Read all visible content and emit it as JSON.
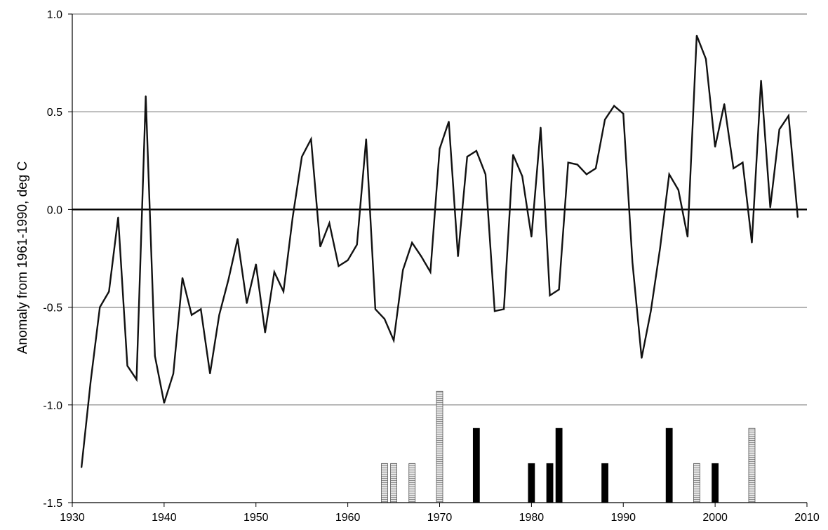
{
  "chart_data": {
    "type": "line",
    "title": "",
    "xlabel": "",
    "ylabel": "Anomaly from 1961-1990, deg C",
    "xlim": [
      1930,
      2010
    ],
    "ylim": [
      -1.5,
      1.0
    ],
    "x_ticks": [
      "1930",
      "1940",
      "1950",
      "1960",
      "1970",
      "1980",
      "1990",
      "2000",
      "2010"
    ],
    "y_ticks": [
      "1.0",
      "0.5",
      "0.0",
      "-0.5",
      "-1.0",
      "-1.5"
    ],
    "grid": "horizontal",
    "series": [
      {
        "x": [
          1931,
          1932,
          1933,
          1934,
          1935,
          1936,
          1937,
          1938,
          1939,
          1940,
          1941,
          1942,
          1943,
          1944,
          1945,
          1946,
          1947,
          1948,
          1949,
          1950,
          1951,
          1952,
          1953,
          1954,
          1955,
          1956,
          1957,
          1958,
          1959,
          1960,
          1961,
          1962,
          1963,
          1964,
          1965,
          1966,
          1967,
          1968,
          1969,
          1970,
          1971,
          1972,
          1973,
          1974,
          1975,
          1976,
          1977,
          1978,
          1979,
          1980,
          1981,
          1982,
          1983,
          1984,
          1985,
          1986,
          1987,
          1988,
          1989,
          1990,
          1991,
          1992,
          1993,
          1994,
          1995,
          1996,
          1997,
          1998,
          1999,
          2000,
          2001,
          2002,
          2003,
          2004,
          2005,
          2006,
          2007,
          2008,
          2009
        ],
        "values": [
          -1.32,
          -0.88,
          -0.5,
          -0.42,
          -0.04,
          -0.8,
          -0.87,
          0.58,
          -0.75,
          -0.99,
          -0.84,
          -0.35,
          -0.54,
          -0.51,
          -0.84,
          -0.54,
          -0.36,
          -0.15,
          -0.48,
          -0.28,
          -0.63,
          -0.32,
          -0.42,
          -0.04,
          0.27,
          0.36,
          -0.19,
          -0.07,
          -0.29,
          -0.26,
          -0.18,
          0.36,
          -0.51,
          -0.56,
          -0.67,
          -0.31,
          -0.17,
          -0.24,
          -0.32,
          0.31,
          0.45,
          -0.24,
          0.27,
          0.3,
          0.18,
          -0.52,
          -0.51,
          0.28,
          0.17,
          -0.14,
          0.42,
          -0.44,
          -0.41,
          0.24,
          0.23,
          0.18,
          0.21,
          0.46,
          0.53,
          0.49,
          -0.27,
          -0.76,
          -0.52,
          -0.2,
          0.18,
          0.1,
          -0.14,
          0.89,
          0.77,
          0.32,
          0.54,
          0.21,
          0.24,
          -0.17,
          0.66,
          0.01,
          0.41,
          0.48,
          -0.04
        ]
      }
    ],
    "bars": {
      "base": -1.5,
      "items": [
        {
          "x": 1964,
          "top": -1.3,
          "style": "hatched"
        },
        {
          "x": 1965,
          "top": -1.3,
          "style": "hatched"
        },
        {
          "x": 1967,
          "top": -1.3,
          "style": "hatched"
        },
        {
          "x": 1970,
          "top": -0.93,
          "style": "hatched"
        },
        {
          "x": 1974,
          "top": -1.12,
          "style": "solid"
        },
        {
          "x": 1980,
          "top": -1.3,
          "style": "solid"
        },
        {
          "x": 1982,
          "top": -1.3,
          "style": "solid"
        },
        {
          "x": 1983,
          "top": -1.12,
          "style": "solid"
        },
        {
          "x": 1988,
          "top": -1.3,
          "style": "solid"
        },
        {
          "x": 1995,
          "top": -1.12,
          "style": "solid"
        },
        {
          "x": 1998,
          "top": -1.3,
          "style": "hatched"
        },
        {
          "x": 2000,
          "top": -1.3,
          "style": "solid"
        },
        {
          "x": 2004,
          "top": -1.12,
          "style": "hatched"
        }
      ]
    },
    "colors": {
      "line": "#111111",
      "grid": "#808080",
      "solid_bar": "#000000",
      "hatched_bar": "#d9d9d9"
    }
  }
}
